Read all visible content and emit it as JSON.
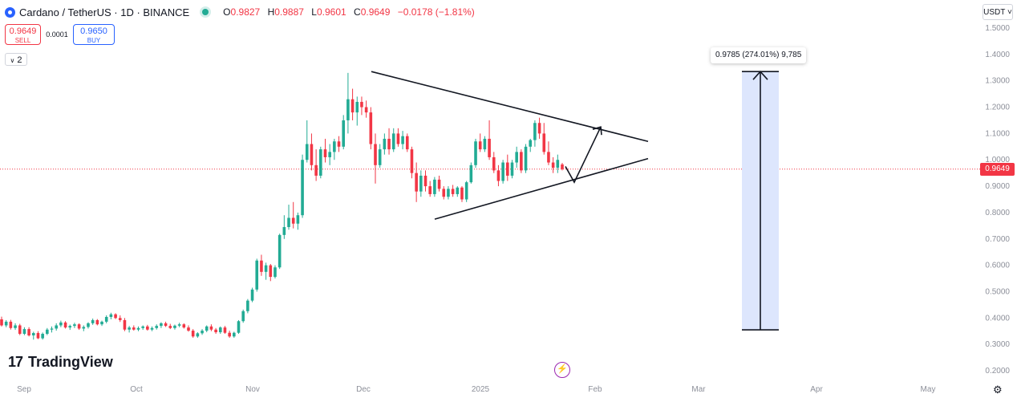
{
  "header": {
    "symbol_title": "Cardano / TetherUS · 1D · BINANCE",
    "open_label": "O",
    "open": "0.9827",
    "high_label": "H",
    "high": "0.9887",
    "low_label": "L",
    "low": "0.9601",
    "close_label": "C",
    "close": "0.9649",
    "change": "−0.0178 (−1.81%)"
  },
  "trade": {
    "sell_price": "0.9649",
    "sell_label": "SELL",
    "spread": "0.0001",
    "buy_price": "0.9650",
    "buy_label": "BUY"
  },
  "indicators_collapse": {
    "count": "2"
  },
  "currency_button": "USDT",
  "last_price_tag": "0.9649",
  "measure_label": "0.9785 (274.01%) 9,785",
  "brand": "TradingView",
  "colors": {
    "up": "#22ab94",
    "down": "#f23645",
    "measure_fill": "#dde6fd",
    "accent": "#2962ff"
  },
  "chart_data": {
    "type": "candlestick",
    "title": "Cardano / TetherUS · 1D · BINANCE",
    "y_axis": {
      "ticks": [
        "1.5000",
        "1.4000",
        "1.3000",
        "1.2000",
        "1.1000",
        "1.0000",
        "0.9000",
        "0.8000",
        "0.7000",
        "0.6000",
        "0.5000",
        "0.4000",
        "0.3000",
        "0.2000"
      ],
      "range": [
        0.18,
        1.52
      ]
    },
    "x_axis": {
      "labels": [
        "Sep",
        "Oct",
        "Nov",
        "Dec",
        "2025",
        "Feb",
        "Mar",
        "Apr",
        "May"
      ]
    },
    "ohlc": [
      [
        0.395,
        0.405,
        0.368,
        0.372
      ],
      [
        0.372,
        0.392,
        0.365,
        0.386
      ],
      [
        0.386,
        0.393,
        0.356,
        0.362
      ],
      [
        0.362,
        0.38,
        0.355,
        0.372
      ],
      [
        0.372,
        0.378,
        0.335,
        0.34
      ],
      [
        0.34,
        0.365,
        0.335,
        0.358
      ],
      [
        0.358,
        0.365,
        0.33,
        0.334
      ],
      [
        0.334,
        0.348,
        0.318,
        0.343
      ],
      [
        0.343,
        0.35,
        0.32,
        0.323
      ],
      [
        0.323,
        0.345,
        0.318,
        0.34
      ],
      [
        0.34,
        0.362,
        0.335,
        0.356
      ],
      [
        0.356,
        0.368,
        0.345,
        0.36
      ],
      [
        0.36,
        0.38,
        0.352,
        0.372
      ],
      [
        0.372,
        0.39,
        0.365,
        0.383
      ],
      [
        0.383,
        0.388,
        0.36,
        0.364
      ],
      [
        0.364,
        0.375,
        0.355,
        0.37
      ],
      [
        0.37,
        0.382,
        0.362,
        0.376
      ],
      [
        0.376,
        0.38,
        0.355,
        0.36
      ],
      [
        0.36,
        0.372,
        0.35,
        0.366
      ],
      [
        0.366,
        0.384,
        0.36,
        0.38
      ],
      [
        0.38,
        0.398,
        0.374,
        0.392
      ],
      [
        0.392,
        0.396,
        0.372,
        0.376
      ],
      [
        0.376,
        0.39,
        0.37,
        0.386
      ],
      [
        0.386,
        0.41,
        0.38,
        0.404
      ],
      [
        0.404,
        0.42,
        0.395,
        0.414
      ],
      [
        0.414,
        0.418,
        0.396,
        0.4
      ],
      [
        0.4,
        0.41,
        0.385,
        0.392
      ],
      [
        0.392,
        0.4,
        0.35,
        0.356
      ],
      [
        0.356,
        0.37,
        0.345,
        0.364
      ],
      [
        0.364,
        0.372,
        0.352,
        0.356
      ],
      [
        0.356,
        0.368,
        0.35,
        0.362
      ],
      [
        0.362,
        0.372,
        0.355,
        0.368
      ],
      [
        0.368,
        0.374,
        0.352,
        0.356
      ],
      [
        0.356,
        0.368,
        0.35,
        0.362
      ],
      [
        0.362,
        0.376,
        0.356,
        0.37
      ],
      [
        0.37,
        0.384,
        0.362,
        0.38
      ],
      [
        0.38,
        0.386,
        0.366,
        0.37
      ],
      [
        0.37,
        0.378,
        0.358,
        0.362
      ],
      [
        0.362,
        0.375,
        0.356,
        0.371
      ],
      [
        0.371,
        0.382,
        0.365,
        0.376
      ],
      [
        0.376,
        0.38,
        0.36,
        0.364
      ],
      [
        0.364,
        0.372,
        0.348,
        0.352
      ],
      [
        0.352,
        0.358,
        0.325,
        0.33
      ],
      [
        0.33,
        0.346,
        0.325,
        0.342
      ],
      [
        0.342,
        0.358,
        0.336,
        0.352
      ],
      [
        0.352,
        0.372,
        0.346,
        0.368
      ],
      [
        0.368,
        0.376,
        0.35,
        0.356
      ],
      [
        0.356,
        0.362,
        0.34,
        0.346
      ],
      [
        0.346,
        0.368,
        0.34,
        0.364
      ],
      [
        0.364,
        0.37,
        0.34,
        0.344
      ],
      [
        0.344,
        0.352,
        0.325,
        0.33
      ],
      [
        0.33,
        0.348,
        0.325,
        0.344
      ],
      [
        0.344,
        0.392,
        0.34,
        0.388
      ],
      [
        0.388,
        0.432,
        0.382,
        0.426
      ],
      [
        0.426,
        0.472,
        0.418,
        0.466
      ],
      [
        0.466,
        0.515,
        0.46,
        0.508
      ],
      [
        0.508,
        0.625,
        0.5,
        0.618
      ],
      [
        0.618,
        0.64,
        0.56,
        0.575
      ],
      [
        0.575,
        0.61,
        0.545,
        0.6
      ],
      [
        0.6,
        0.605,
        0.54,
        0.556
      ],
      [
        0.556,
        0.6,
        0.55,
        0.592
      ],
      [
        0.592,
        0.72,
        0.586,
        0.715
      ],
      [
        0.715,
        0.79,
        0.7,
        0.745
      ],
      [
        0.745,
        0.83,
        0.735,
        0.78
      ],
      [
        0.78,
        0.84,
        0.74,
        0.758
      ],
      [
        0.758,
        0.8,
        0.735,
        0.79
      ],
      [
        0.79,
        1.02,
        0.78,
        1.0
      ],
      [
        1.0,
        1.15,
        0.99,
        1.06
      ],
      [
        1.06,
        1.1,
        0.96,
        0.98
      ],
      [
        0.98,
        1.04,
        0.92,
        0.94
      ],
      [
        0.94,
        1.05,
        0.93,
        1.04
      ],
      [
        1.04,
        1.08,
        0.99,
        1.01
      ],
      [
        1.01,
        1.06,
        0.98,
        1.03
      ],
      [
        1.03,
        1.08,
        1.0,
        1.07
      ],
      [
        1.07,
        1.09,
        1.03,
        1.05
      ],
      [
        1.05,
        1.17,
        1.04,
        1.15
      ],
      [
        1.15,
        1.33,
        1.1,
        1.23
      ],
      [
        1.23,
        1.27,
        1.15,
        1.18
      ],
      [
        1.18,
        1.24,
        1.13,
        1.22
      ],
      [
        1.22,
        1.24,
        1.17,
        1.2
      ],
      [
        1.2,
        1.225,
        1.16,
        1.18
      ],
      [
        1.18,
        1.2,
        1.04,
        1.06
      ],
      [
        1.06,
        1.1,
        0.91,
        0.98
      ],
      [
        0.98,
        1.06,
        0.97,
        1.04
      ],
      [
        1.04,
        1.1,
        1.02,
        1.08
      ],
      [
        1.08,
        1.12,
        1.02,
        1.04
      ],
      [
        1.04,
        1.12,
        1.03,
        1.1
      ],
      [
        1.1,
        1.12,
        1.05,
        1.06
      ],
      [
        1.06,
        1.11,
        1.04,
        1.09
      ],
      [
        1.09,
        1.1,
        1.03,
        1.04
      ],
      [
        1.04,
        1.05,
        0.93,
        0.95
      ],
      [
        0.95,
        0.99,
        0.84,
        0.88
      ],
      [
        0.88,
        0.96,
        0.86,
        0.94
      ],
      [
        0.94,
        0.96,
        0.88,
        0.9
      ],
      [
        0.9,
        0.92,
        0.86,
        0.87
      ],
      [
        0.87,
        0.935,
        0.86,
        0.925
      ],
      [
        0.925,
        0.94,
        0.88,
        0.89
      ],
      [
        0.89,
        0.9,
        0.85,
        0.86
      ],
      [
        0.86,
        0.9,
        0.85,
        0.89
      ],
      [
        0.89,
        0.905,
        0.86,
        0.87
      ],
      [
        0.87,
        0.9,
        0.86,
        0.895
      ],
      [
        0.895,
        0.9,
        0.84,
        0.85
      ],
      [
        0.85,
        0.92,
        0.84,
        0.915
      ],
      [
        0.915,
        0.99,
        0.91,
        0.98
      ],
      [
        0.98,
        1.08,
        0.97,
        1.07
      ],
      [
        1.07,
        1.1,
        1.03,
        1.04
      ],
      [
        1.04,
        1.09,
        1.03,
        1.08
      ],
      [
        1.08,
        1.15,
        1.0,
        1.01
      ],
      [
        1.01,
        1.03,
        0.95,
        0.96
      ],
      [
        0.96,
        0.98,
        0.9,
        0.92
      ],
      [
        0.92,
        1.0,
        0.91,
        0.99
      ],
      [
        0.99,
        1.02,
        0.92,
        0.94
      ],
      [
        0.94,
        1.0,
        0.93,
        0.99
      ],
      [
        0.99,
        1.05,
        0.97,
        1.03
      ],
      [
        1.03,
        1.04,
        0.95,
        0.96
      ],
      [
        0.96,
        1.06,
        0.95,
        1.05
      ],
      [
        1.05,
        1.08,
        1.03,
        1.075
      ],
      [
        1.075,
        1.15,
        1.05,
        1.14
      ],
      [
        1.14,
        1.16,
        1.08,
        1.1
      ],
      [
        1.1,
        1.14,
        1.02,
        1.03
      ],
      [
        1.03,
        1.07,
        0.98,
        0.99
      ],
      [
        0.99,
        1.01,
        0.95,
        0.97
      ],
      [
        0.97,
        1.02,
        0.95,
        1.0
      ],
      [
        0.9827,
        0.9887,
        0.9601,
        0.9649
      ]
    ],
    "last_price": 0.9649,
    "annotations": {
      "triangle_upper": [
        [
          1.335,
          0
        ],
        [
          1.07,
          1
        ]
      ],
      "triangle_lower": [
        [
          0.775,
          0
        ],
        [
          1.005,
          1
        ]
      ],
      "projection_path": [
        0.975,
        0.915,
        1.125
      ],
      "measure": {
        "from": 0.355,
        "to": 1.335,
        "label": "0.9785 (274.01%) 9,785"
      }
    }
  }
}
